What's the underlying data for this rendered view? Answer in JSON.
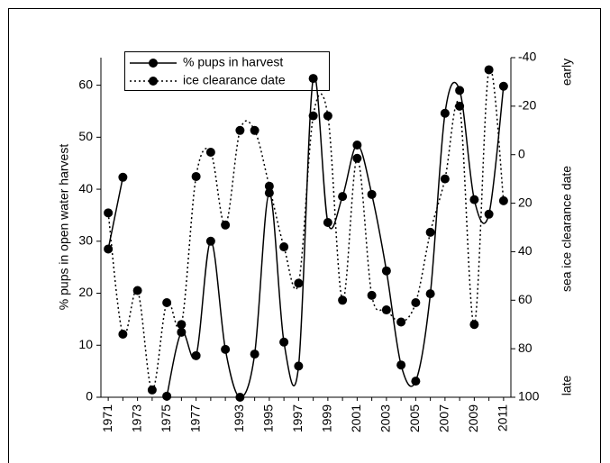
{
  "chart_data": {
    "type": "line",
    "y_label": "% pups in open water harvest",
    "y2_label": "sea ice clearance date",
    "annotations": [
      "early",
      "late"
    ],
    "categories": [
      "1971",
      null,
      "1973",
      null,
      "1975",
      null,
      "1977",
      null,
      null,
      "1993",
      null,
      "1995",
      null,
      "1997",
      null,
      "1999",
      null,
      "2001",
      null,
      "2003",
      null,
      "2005",
      null,
      "2007",
      null,
      "2009",
      null,
      "2011"
    ],
    "series": [
      {
        "name": "% pups in harvest",
        "color": "#000000",
        "line_style": "solid",
        "values": [
          28.5,
          42.3,
          null,
          null,
          0.2,
          12.5,
          8,
          30,
          9.2,
          0,
          8.3,
          39.3,
          10.6,
          6,
          61.3,
          33.6,
          38.6,
          48.5,
          39,
          24.3,
          6.2,
          3.1,
          19.9,
          54.6,
          59,
          38,
          35.2,
          59.8
        ]
      },
      {
        "name": "ice clearance date",
        "color": "#000000",
        "line_style": "dotted",
        "axis": "y2",
        "values": [
          24,
          74,
          56,
          97,
          61,
          70,
          9,
          -1,
          29,
          -10,
          -10,
          13,
          38,
          53,
          -16,
          -16,
          60,
          1.5,
          58,
          64,
          69,
          61,
          32,
          10,
          -20,
          70,
          -35,
          19
        ]
      }
    ],
    "ylim": [
      0,
      65.3
    ],
    "yticks": [
      0,
      10,
      20,
      30,
      40,
      50,
      60
    ],
    "y2lim": [
      100,
      -40
    ],
    "y2ticks": [
      -40,
      -20,
      0,
      20,
      40,
      60,
      80,
      100
    ],
    "legend": "top-left",
    "grid": false
  }
}
